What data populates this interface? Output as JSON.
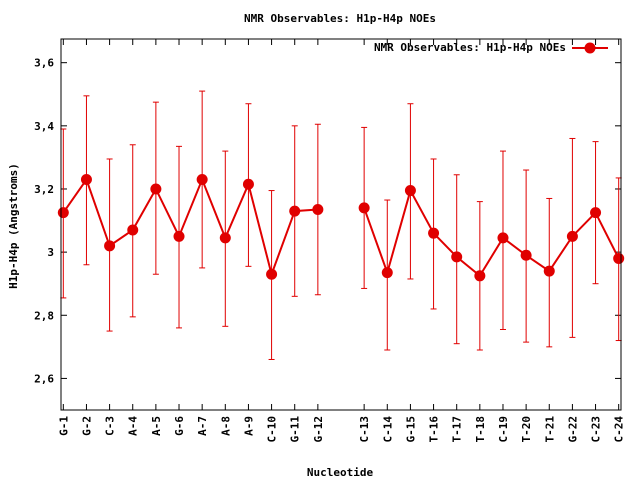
{
  "chart_data": {
    "type": "line",
    "title": "NMR Observables: H1p-H4p NOEs",
    "xlabel": "Nucleotide",
    "ylabel": "H1p-H4p (Angstroms)",
    "ylim": [
      2.5,
      3.675
    ],
    "yticks": [
      "2,6",
      "2,8",
      "3",
      "3,2",
      "3,4",
      "3,6"
    ],
    "ytick_values": [
      2.6,
      2.8,
      3.0,
      3.2,
      3.4,
      3.6
    ],
    "legend_position": "top-right",
    "color": "#e00000",
    "categories": [
      "G-1",
      "G-2",
      "C-3",
      "A-4",
      "A-5",
      "G-6",
      "A-7",
      "A-8",
      "A-9",
      "C-10",
      "G-11",
      "G-12",
      "C-13",
      "C-14",
      "G-15",
      "T-16",
      "T-17",
      "T-18",
      "C-19",
      "T-20",
      "T-21",
      "G-22",
      "C-23",
      "C-24"
    ],
    "x": [
      1,
      2,
      3,
      4,
      5,
      6,
      7,
      8,
      9,
      10,
      11,
      12,
      14,
      15,
      16,
      17,
      18,
      19,
      20,
      21,
      22,
      23,
      24,
      25
    ],
    "series": [
      {
        "name": "NMR Observables: H1p-H4p NOEs",
        "values": [
          3.125,
          3.23,
          3.02,
          3.07,
          3.2,
          3.05,
          3.23,
          3.045,
          3.215,
          2.93,
          3.13,
          3.135,
          3.14,
          2.935,
          3.195,
          3.06,
          2.985,
          2.925,
          3.045,
          2.99,
          2.94,
          3.05,
          3.125,
          2.98
        ],
        "err_low": [
          2.855,
          2.96,
          2.75,
          2.795,
          2.93,
          2.76,
          2.95,
          2.765,
          2.955,
          2.66,
          2.86,
          2.865,
          2.885,
          2.69,
          2.915,
          2.82,
          2.71,
          2.69,
          2.755,
          2.715,
          2.7,
          2.73,
          2.9,
          2.72
        ],
        "err_high": [
          3.39,
          3.495,
          3.295,
          3.34,
          3.475,
          3.335,
          3.51,
          3.32,
          3.47,
          3.195,
          3.4,
          3.405,
          3.395,
          3.165,
          3.47,
          3.295,
          3.245,
          3.16,
          3.32,
          3.26,
          3.17,
          3.36,
          3.35,
          3.235
        ],
        "segments": [
          [
            0,
            11
          ],
          [
            12,
            23
          ]
        ]
      }
    ]
  }
}
